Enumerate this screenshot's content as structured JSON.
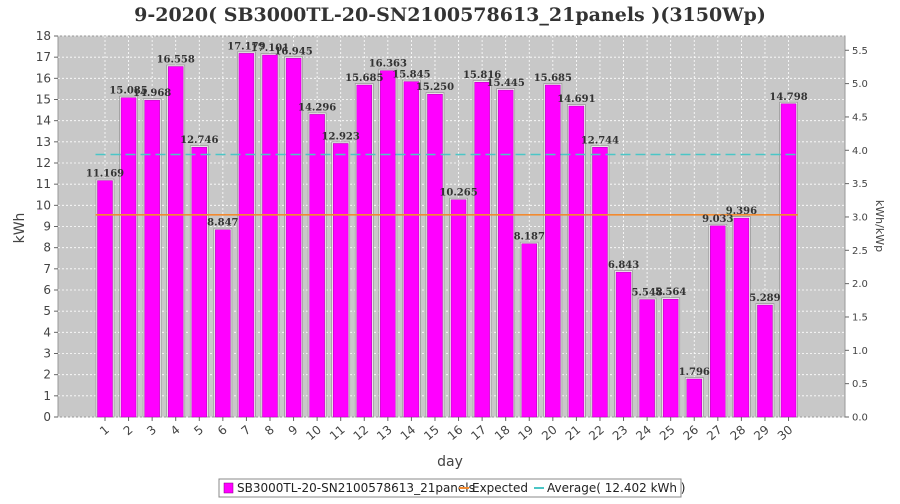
{
  "chart_data": {
    "type": "bar",
    "title": "9-2020( SB3000TL-20-SN2100578613_21panels )(3150Wp)",
    "xlabel": "day",
    "ylabel": "kWh",
    "ylabel_right": "kWh/kWp",
    "ylim": [
      0,
      18
    ],
    "ylim_right": [
      0,
      5.714
    ],
    "yticks": [
      0,
      1,
      2,
      3,
      4,
      5,
      6,
      7,
      8,
      9,
      10,
      11,
      12,
      13,
      14,
      15,
      16,
      17,
      18
    ],
    "yticks_right": [
      "0.0",
      "0.5",
      "1.0",
      "1.5",
      "2.0",
      "2.5",
      "3.0",
      "3.5",
      "4.0",
      "4.5",
      "5.0",
      "5.5"
    ],
    "categories": [
      "1",
      "2",
      "3",
      "4",
      "5",
      "6",
      "7",
      "8",
      "9",
      "10",
      "11",
      "12",
      "13",
      "14",
      "15",
      "16",
      "17",
      "18",
      "19",
      "20",
      "21",
      "22",
      "23",
      "24",
      "25",
      "26",
      "27",
      "28",
      "29",
      "30"
    ],
    "series": [
      {
        "name": "SB3000TL-20-SN2100578613_21panels",
        "color": "#ff00ff",
        "values": [
          11.169,
          15.085,
          14.968,
          16.558,
          12.746,
          8.847,
          17.179,
          17.101,
          16.945,
          14.296,
          12.923,
          15.685,
          16.363,
          15.845,
          15.25,
          10.265,
          15.816,
          15.445,
          8.187,
          15.685,
          14.691,
          12.744,
          6.843,
          5.548,
          5.564,
          1.796,
          9.033,
          9.396,
          5.289,
          14.798
        ],
        "labels": [
          "11.169",
          "15.085",
          "14.968",
          "16.558",
          "12.746",
          "8.847",
          "17.179",
          "17.101",
          "16.945",
          "14.296",
          "12.923",
          "15.685",
          "16.363",
          "15.845",
          "15.250",
          "10.265",
          "15.816",
          "15.445",
          "8.187",
          "15.685",
          "14.691",
          "12.744",
          "6.843",
          "5.548",
          "5.564",
          "1.796",
          "9.033",
          "9.396",
          "5.289",
          "14.798"
        ]
      }
    ],
    "lines": [
      {
        "name": "Expected",
        "value": 9.55,
        "color": "#f28a30",
        "style": "solid"
      },
      {
        "name": "Average( 12.402 kWh )",
        "value": 12.402,
        "color": "#4bc6c6",
        "style": "dashed"
      }
    ],
    "grid": true,
    "legend_position": "bottom"
  }
}
